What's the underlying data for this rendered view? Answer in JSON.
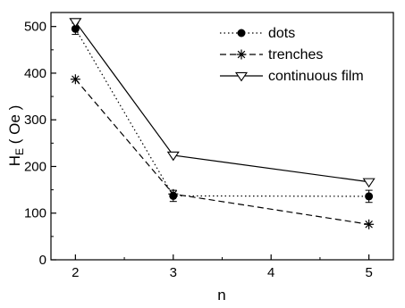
{
  "chart_data": {
    "type": "line",
    "x": [
      2,
      3,
      5
    ],
    "xlabel": "n",
    "ylabel_main": "H",
    "ylabel_sub": "E",
    "ylabel_rest": " ( Oe )",
    "xlim": [
      1.75,
      5.25
    ],
    "ylim": [
      0,
      530
    ],
    "xticks": [
      2,
      3,
      4,
      5
    ],
    "yticks": [
      0,
      100,
      200,
      300,
      400,
      500
    ],
    "xtick_labels": [
      "2",
      "3",
      "4",
      "5"
    ],
    "ytick_labels": [
      "0",
      "100",
      "200",
      "300",
      "400",
      "500"
    ],
    "grid": false,
    "legend_position": "top-right",
    "series": [
      {
        "name": "dots",
        "values": [
          495,
          137,
          136
        ],
        "errors": [
          12,
          12,
          13
        ],
        "marker": "filled-circle",
        "line": "dotted"
      },
      {
        "name": "trenches",
        "values": [
          387,
          141,
          76
        ],
        "marker": "asterisk",
        "line": "dashed"
      },
      {
        "name": "continuous film",
        "values": [
          510,
          224,
          167
        ],
        "marker": "open-triangle-down",
        "line": "solid"
      }
    ]
  }
}
